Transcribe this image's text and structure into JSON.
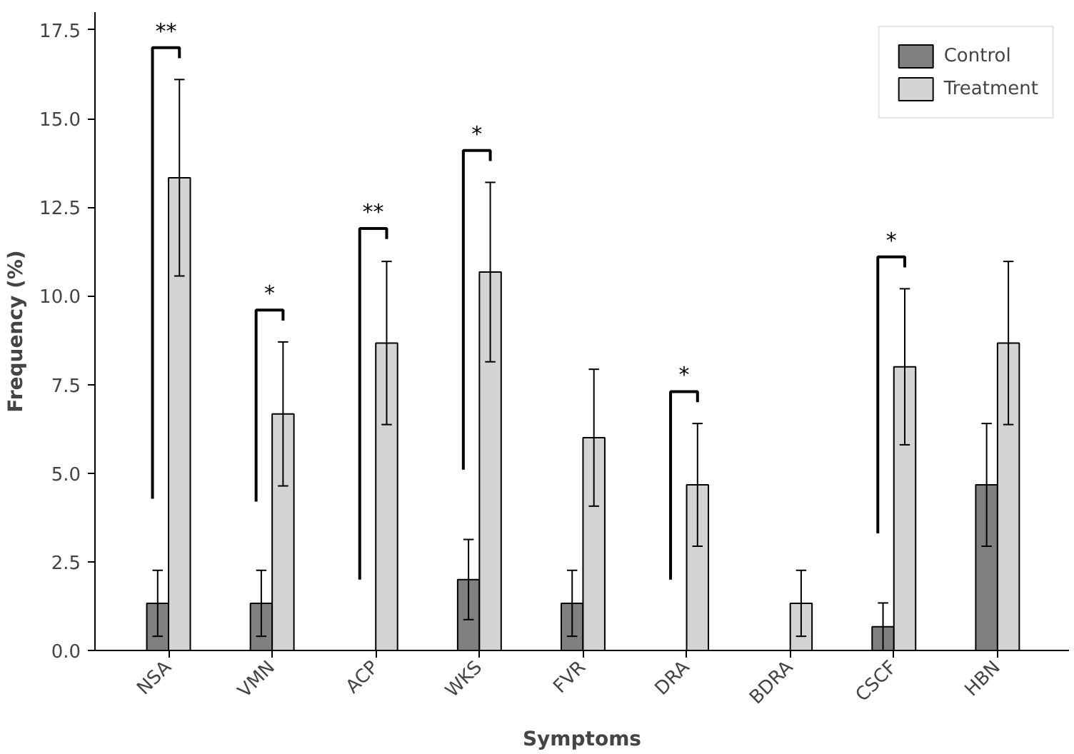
{
  "chart_data": {
    "type": "bar",
    "xlabel": "Symptoms",
    "ylabel": "Frequency (%)",
    "categories": [
      "NSA",
      "VMN",
      "ACP",
      "WKS",
      "FVR",
      "DRA",
      "BDRA",
      "CSCF",
      "HBN"
    ],
    "series": [
      {
        "name": "Control",
        "color": "#808080",
        "values": [
          1.33,
          1.33,
          0,
          2.0,
          1.33,
          0,
          0,
          0.67,
          4.67
        ],
        "errors": [
          0.93,
          0.93,
          null,
          1.13,
          0.93,
          null,
          null,
          0.67,
          1.73
        ]
      },
      {
        "name": "Treatment",
        "color": "#d3d3d3",
        "values": [
          13.33,
          6.67,
          8.67,
          10.67,
          6.0,
          4.67,
          1.33,
          8.0,
          8.67
        ],
        "errors": [
          2.77,
          2.03,
          2.3,
          2.53,
          1.93,
          1.73,
          0.93,
          2.2,
          2.3
        ]
      }
    ],
    "ylim": [
      0,
      18
    ],
    "yticks": [
      {
        "value": 0,
        "label": "0.0"
      },
      2.5,
      {
        "value": 5,
        "label": "5.0"
      },
      7.5,
      {
        "value": 10,
        "label": "10.0"
      },
      12.5,
      {
        "value": 15,
        "label": "15.0"
      },
      17.5
    ],
    "annotations": [
      "**",
      "*",
      "**",
      "*",
      "*",
      "*"
    ],
    "legend": "top right",
    "grid": false
  }
}
